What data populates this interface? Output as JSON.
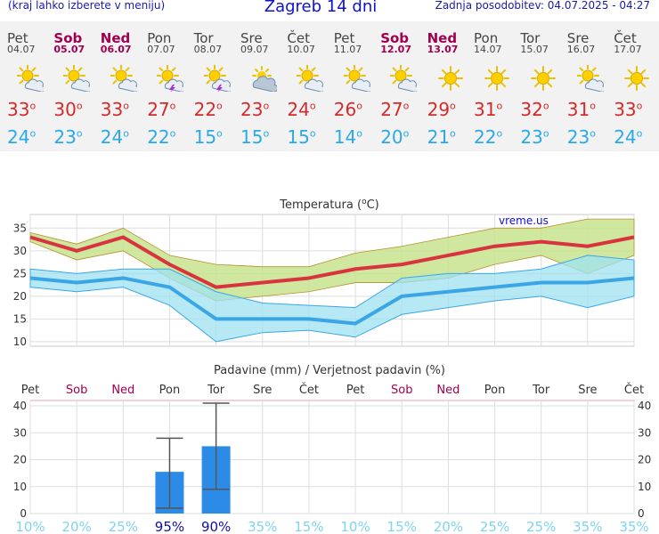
{
  "header": {
    "menu_hint": "(kraj lahko izberete v meniju)",
    "title": "Zagreb 14 dni",
    "updated": "Zadnja posodobitev: 04.07.2025 - 04:27"
  },
  "days": [
    {
      "name": "Pet",
      "date": "04.07",
      "weekend": false,
      "icon": "sun-cloud-icon",
      "max": "33",
      "min": "24"
    },
    {
      "name": "Sob",
      "date": "05.07",
      "weekend": true,
      "icon": "sun-cloud-icon",
      "max": "30",
      "min": "23"
    },
    {
      "name": "Ned",
      "date": "06.07",
      "weekend": true,
      "icon": "sun-cloud-icon",
      "max": "33",
      "min": "24"
    },
    {
      "name": "Pon",
      "date": "07.07",
      "weekend": false,
      "icon": "sun-storm-icon",
      "max": "27",
      "min": "22"
    },
    {
      "name": "Tor",
      "date": "08.07",
      "weekend": false,
      "icon": "sun-storm-icon",
      "max": "22",
      "min": "15"
    },
    {
      "name": "Sre",
      "date": "09.07",
      "weekend": false,
      "icon": "cloudy-icon",
      "max": "23",
      "min": "15"
    },
    {
      "name": "Čet",
      "date": "10.07",
      "weekend": false,
      "icon": "sun-cloud-icon",
      "max": "24",
      "min": "15"
    },
    {
      "name": "Pet",
      "date": "11.07",
      "weekend": false,
      "icon": "sun-cloud-icon",
      "max": "26",
      "min": "14"
    },
    {
      "name": "Sob",
      "date": "12.07",
      "weekend": true,
      "icon": "sun-cloud-icon",
      "max": "27",
      "min": "20"
    },
    {
      "name": "Ned",
      "date": "13.07",
      "weekend": true,
      "icon": "sun-icon",
      "max": "29",
      "min": "21"
    },
    {
      "name": "Pon",
      "date": "14.07",
      "weekend": false,
      "icon": "sun-icon",
      "max": "31",
      "min": "22"
    },
    {
      "name": "Tor",
      "date": "15.07",
      "weekend": false,
      "icon": "sun-icon",
      "max": "32",
      "min": "23"
    },
    {
      "name": "Sre",
      "date": "16.07",
      "weekend": false,
      "icon": "sun-cloud-icon",
      "max": "31",
      "min": "23"
    },
    {
      "name": "Čet",
      "date": "17.07",
      "weekend": false,
      "icon": "sun-icon",
      "max": "33",
      "min": "24"
    }
  ],
  "degree_symbol": "o",
  "colors": {
    "max_line": "#d8343f",
    "min_line": "#3aa6e6",
    "max_band": "#c7e38e",
    "min_band": "#9fe2f2",
    "bar": "#2b8be6",
    "weekend": "#a00050",
    "title_blue": "#1010d0"
  },
  "chart_data": [
    {
      "type": "line",
      "title": "Temperatura (",
      "title_unit": "C)",
      "title_degree": "o",
      "watermark": "vreme.us",
      "categories": [
        "Pet",
        "Sob",
        "Ned",
        "Pon",
        "Tor",
        "Sre",
        "Čet",
        "Pet",
        "Sob",
        "Ned",
        "Pon",
        "Tor",
        "Sre",
        "Čet"
      ],
      "ylim": [
        9,
        38
      ],
      "yticks": [
        10,
        15,
        20,
        25,
        30,
        35
      ],
      "grid": true,
      "series": [
        {
          "name": "max",
          "values": [
            33,
            30,
            33,
            27,
            22,
            23,
            24,
            26,
            27,
            29,
            31,
            32,
            31,
            33
          ],
          "band_upper": [
            34,
            31.5,
            35,
            29,
            27,
            26.5,
            26.5,
            29.5,
            31,
            33,
            35,
            35,
            37,
            37
          ],
          "band_lower": [
            32,
            28,
            30,
            24,
            19,
            20,
            21,
            23,
            23,
            24,
            27,
            29,
            25,
            29
          ]
        },
        {
          "name": "min",
          "values": [
            24,
            23,
            24,
            22,
            15,
            15,
            15,
            14,
            20,
            21,
            22,
            23,
            23,
            24
          ],
          "band_upper": [
            26,
            25,
            26,
            26,
            21,
            18.5,
            18,
            17.5,
            24,
            25,
            25,
            26,
            29,
            28
          ],
          "band_lower": [
            22,
            21,
            22,
            18,
            10,
            12,
            12.5,
            11,
            16,
            17.5,
            19,
            20,
            17.5,
            20
          ]
        }
      ]
    },
    {
      "type": "bar",
      "title": "Padavine (mm) / Verjetnost padavin (%)",
      "categories": [
        "Pet",
        "Sob",
        "Ned",
        "Pon",
        "Tor",
        "Sre",
        "Čet",
        "Pet",
        "Sob",
        "Ned",
        "Pon",
        "Tor",
        "Sre",
        "Čet"
      ],
      "weekend": [
        false,
        true,
        true,
        false,
        false,
        false,
        false,
        false,
        true,
        true,
        false,
        false,
        false,
        false
      ],
      "ylim": [
        0,
        42
      ],
      "yticks": [
        0,
        10,
        20,
        30,
        40
      ],
      "values": [
        0,
        0,
        0,
        15.5,
        25,
        0,
        0,
        0,
        0,
        0,
        0,
        0,
        0,
        0
      ],
      "error_high": [
        0,
        0,
        0,
        28,
        41,
        0,
        0,
        0,
        0,
        0,
        0,
        0,
        0,
        0
      ],
      "error_low": [
        0,
        0,
        0,
        2,
        9,
        0,
        0,
        0,
        0,
        0,
        0,
        0,
        0,
        0
      ],
      "probability": [
        "10%",
        "20%",
        "25%",
        "95%",
        "90%",
        "35%",
        "15%",
        "10%",
        "15%",
        "20%",
        "25%",
        "25%",
        "35%",
        "35%"
      ]
    }
  ]
}
